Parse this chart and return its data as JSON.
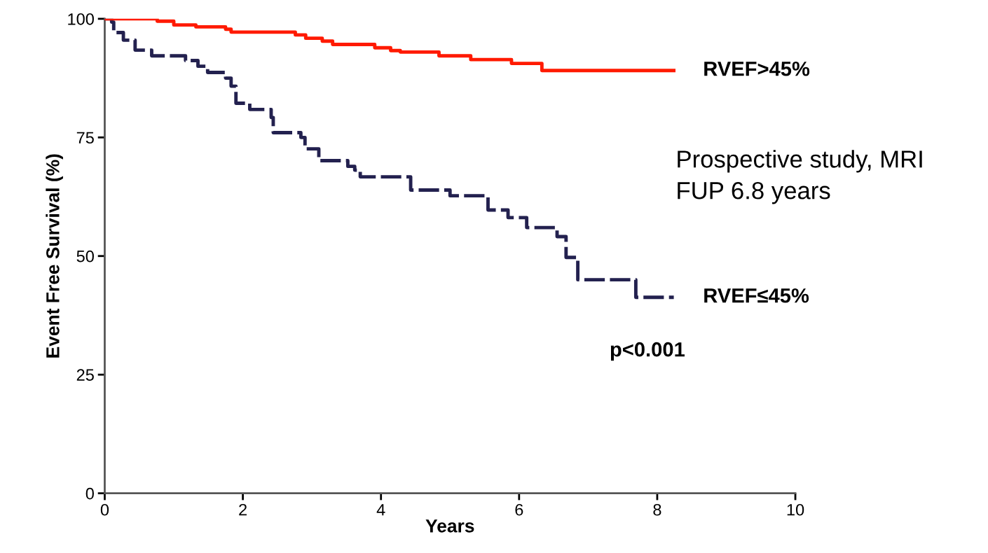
{
  "chart_data": {
    "type": "step",
    "xlabel": "Years",
    "ylabel": "Event Free Survival (%)",
    "xlim": [
      0,
      10
    ],
    "xticks": [
      0,
      2,
      4,
      6,
      8,
      10
    ],
    "ylim": [
      0,
      100
    ],
    "yticks": [
      0,
      25,
      50,
      75,
      100
    ],
    "grid": false,
    "legend": false,
    "marker": "none",
    "series": [
      {
        "name": "RVEF>45%",
        "color": "#ff1a00",
        "line_style": "solid",
        "x": [
          0,
          0.76,
          1.0,
          1.32,
          1.75,
          1.83,
          2.76,
          2.91,
          3.15,
          3.3,
          3.91,
          4.14,
          4.28,
          4.84,
          5.3,
          5.89,
          6.33,
          8.24
        ],
        "values": [
          100,
          99.5,
          98.7,
          98.3,
          97.8,
          97.2,
          96.6,
          95.9,
          95.3,
          94.6,
          93.9,
          93.3,
          93.0,
          92.2,
          91.4,
          90.6,
          89.1,
          89.1
        ]
      },
      {
        "name": "RVEF≤45%",
        "color": "#23214f",
        "line_style": "dashed",
        "x": [
          0,
          0.1,
          0.13,
          0.27,
          0.44,
          0.68,
          1.17,
          1.35,
          1.49,
          1.75,
          1.83,
          1.9,
          2.1,
          2.41,
          2.44,
          2.84,
          2.9,
          3.1,
          3.52,
          3.62,
          3.7,
          4.43,
          5.0,
          5.55,
          5.84,
          6.11,
          6.55,
          6.68,
          6.85,
          7.69,
          8.24
        ],
        "values": [
          100,
          99.3,
          97.1,
          95.5,
          93.4,
          92.2,
          91.2,
          90.0,
          88.7,
          87.5,
          85.8,
          82.2,
          80.9,
          79.2,
          76.0,
          75.0,
          72.6,
          70.1,
          68.9,
          68.1,
          66.7,
          63.9,
          62.7,
          59.7,
          58.1,
          56.0,
          54.1,
          49.7,
          45.0,
          41.3,
          41.3
        ]
      }
    ],
    "annotations": [
      "Prospective study, MRI\nFUP 6.8 years",
      "p<0.001"
    ]
  }
}
